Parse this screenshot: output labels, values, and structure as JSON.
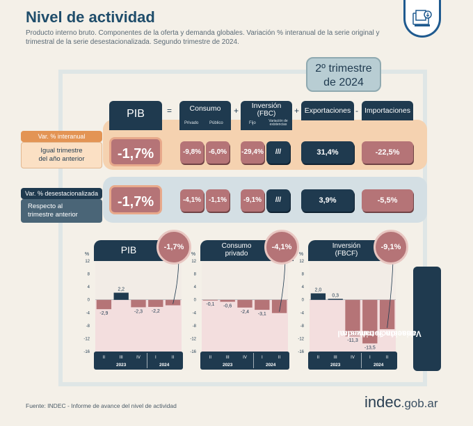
{
  "header": {
    "title": "Nivel de actividad",
    "subtitle": "Producto interno bruto. Componentes de la oferta y demanda globales. Variación % interanual de la serie original y trimestral de la serie desestacionalizada. Segundo trimestre de 2024."
  },
  "quarter_label_1": "2º trimestre",
  "quarter_label_2": "de 2024",
  "equation": {
    "pib": "PIB",
    "eq": "=",
    "plus1": "+",
    "plus2": "+",
    "minus": "-",
    "consumo": "Consumo",
    "consumo_privado": "Privado",
    "consumo_publico": "Público",
    "inversion_1": "Inversión",
    "inversion_2": "(FBC)",
    "inversion_fijo": "Fijo",
    "inversion_var_1": "Variación de",
    "inversion_var_2": "existencias",
    "exportaciones": "Exportaciones",
    "importaciones": "Importaciones"
  },
  "rows": {
    "interanual_tag": "Var. % interanual",
    "interanual_desc_1": "Igual trimestre",
    "interanual_desc_2": "del año anterior",
    "desest_tag": "Var. % desestacionalizada",
    "desest_desc_1": "Respecto al",
    "desest_desc_2": "trimestre anterior"
  },
  "interanual": {
    "pib": "-1,7%",
    "privado": "-9,8%",
    "publico": "-6,0%",
    "fijo": "-29,4%",
    "existencias": "///",
    "exportaciones": "31,4%",
    "importaciones": "-22,5%"
  },
  "desest": {
    "pib": "-1,7%",
    "privado": "-4,1%",
    "publico": "-1,1%",
    "fijo": "-9,1%",
    "existencias": "///",
    "exportaciones": "3,9%",
    "importaciones": "-5,5%"
  },
  "vertical_label_1": "Variación % trimestral",
  "vertical_label_2": "desestacionalizada",
  "footer": "Fuente: INDEC - Informe de avance del nivel de actividad",
  "brand": {
    "main": "indec",
    "tld": ".gob.ar"
  },
  "axis": {
    "pct": "%",
    "ticks": [
      "12",
      "8",
      "4",
      "0",
      "-4",
      "-8",
      "-12",
      "-16"
    ]
  },
  "colors": {
    "negative": "#b57477",
    "positive": "#1f3a4f",
    "plot_bg": "#f3dede",
    "accent_orange": "#e39454"
  },
  "chart_data": [
    {
      "type": "bar",
      "title": "PIB",
      "highlight": "-1,7%",
      "categories": [
        "II",
        "III",
        "IV",
        "I",
        "II"
      ],
      "year_labels": [
        "2023",
        "2024"
      ],
      "values": [
        -2.9,
        2.2,
        -2.3,
        -2.2,
        -1.7
      ],
      "labels": [
        "-2,9",
        "2,2",
        "-2,3",
        "-2,2",
        ""
      ],
      "ylim": [
        -16,
        12
      ]
    },
    {
      "type": "bar",
      "title_1": "Consumo",
      "title_2": "privado",
      "highlight": "-4,1%",
      "categories": [
        "II",
        "III",
        "IV",
        "I",
        "II"
      ],
      "year_labels": [
        "2023",
        "2024"
      ],
      "values": [
        -0.1,
        -0.6,
        -2.4,
        -3.1,
        -4.1
      ],
      "labels": [
        "-0,1",
        "-0,6",
        "-2,4",
        "-3,1",
        ""
      ],
      "ylim": [
        -16,
        12
      ]
    },
    {
      "type": "bar",
      "title_1": "Inversión",
      "title_2": "(FBCF)",
      "highlight": "-9,1%",
      "categories": [
        "II",
        "III",
        "IV",
        "I",
        "II"
      ],
      "year_labels": [
        "2023",
        "2024"
      ],
      "values": [
        2.0,
        0.3,
        -11.3,
        -13.5,
        -9.1
      ],
      "labels": [
        "2,0",
        "0,3",
        "-11,3",
        "-13,5",
        ""
      ],
      "ylim": [
        -16,
        12
      ]
    }
  ]
}
